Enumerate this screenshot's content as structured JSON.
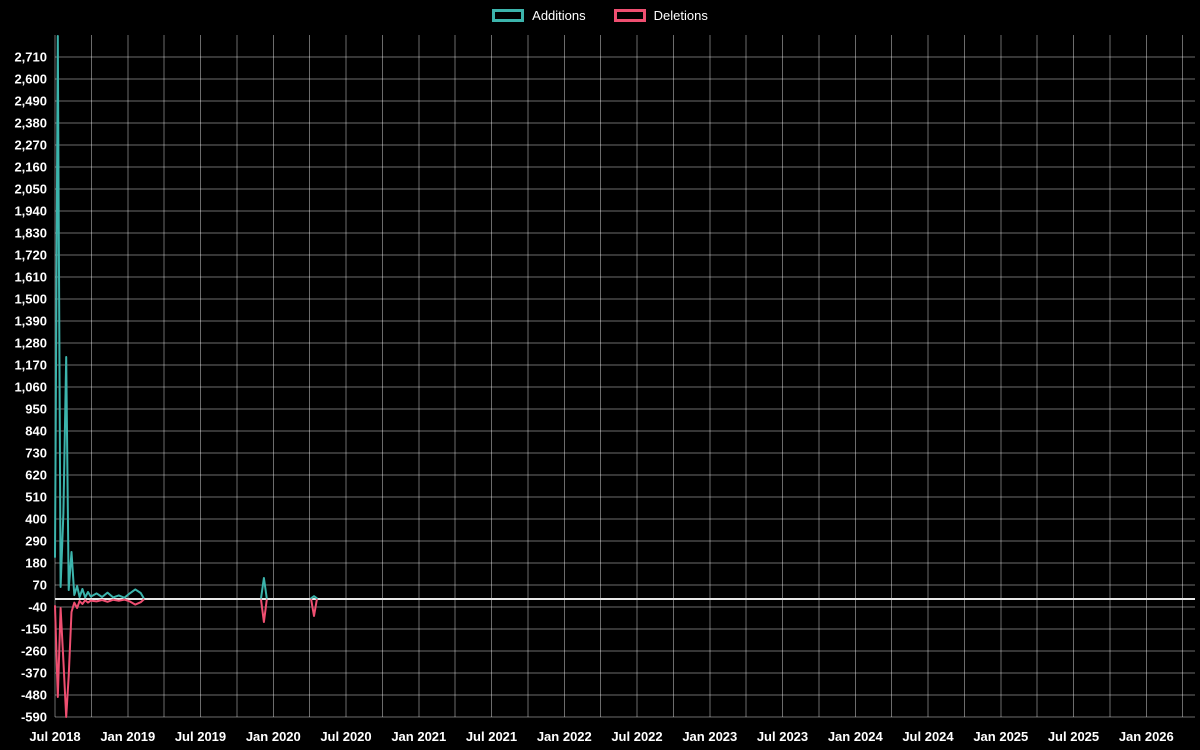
{
  "chart_data": {
    "type": "line",
    "title": "",
    "xlabel": "",
    "ylabel": "",
    "grid": true,
    "legend_position": "top-center",
    "background_color": "#000000",
    "ylim": [
      -590,
      2820
    ],
    "y_ticks": [
      {
        "v": 2710,
        "label": "2,710"
      },
      {
        "v": 2600,
        "label": "2,600"
      },
      {
        "v": 2490,
        "label": "2,490"
      },
      {
        "v": 2380,
        "label": "2,380"
      },
      {
        "v": 2270,
        "label": "2,270"
      },
      {
        "v": 2160,
        "label": "2,160"
      },
      {
        "v": 2050,
        "label": "2,050"
      },
      {
        "v": 1940,
        "label": "1,940"
      },
      {
        "v": 1830,
        "label": "1,830"
      },
      {
        "v": 1720,
        "label": "1,720"
      },
      {
        "v": 1610,
        "label": "1,610"
      },
      {
        "v": 1500,
        "label": "1,500"
      },
      {
        "v": 1390,
        "label": "1,390"
      },
      {
        "v": 1280,
        "label": "1,280"
      },
      {
        "v": 1170,
        "label": "1,170"
      },
      {
        "v": 1060,
        "label": "1,060"
      },
      {
        "v": 950,
        "label": "950"
      },
      {
        "v": 840,
        "label": "840"
      },
      {
        "v": 730,
        "label": "730"
      },
      {
        "v": 620,
        "label": "620"
      },
      {
        "v": 510,
        "label": "510"
      },
      {
        "v": 400,
        "label": "400"
      },
      {
        "v": 290,
        "label": "290"
      },
      {
        "v": 180,
        "label": "180"
      },
      {
        "v": 70,
        "label": "70"
      },
      {
        "v": -40,
        "label": "-40"
      },
      {
        "v": -150,
        "label": "-150"
      },
      {
        "v": -260,
        "label": "-260"
      },
      {
        "v": -370,
        "label": "-370"
      },
      {
        "v": -480,
        "label": "-480"
      },
      {
        "v": -590,
        "label": "-590"
      }
    ],
    "x_ticks": [
      {
        "t": 2018.5,
        "label": "Jul 2018"
      },
      {
        "t": 2019.0,
        "label": "Jan 2019"
      },
      {
        "t": 2019.5,
        "label": "Jul 2019"
      },
      {
        "t": 2020.0,
        "label": "Jan 2020"
      },
      {
        "t": 2020.5,
        "label": "Jul 2020"
      },
      {
        "t": 2021.0,
        "label": "Jan 2021"
      },
      {
        "t": 2021.5,
        "label": "Jul 2021"
      },
      {
        "t": 2022.0,
        "label": "Jan 2022"
      },
      {
        "t": 2022.5,
        "label": "Jul 2022"
      },
      {
        "t": 2023.0,
        "label": "Jan 2023"
      },
      {
        "t": 2023.5,
        "label": "Jul 2023"
      },
      {
        "t": 2024.0,
        "label": "Jan 2024"
      },
      {
        "t": 2024.5,
        "label": "Jul 2024"
      },
      {
        "t": 2025.0,
        "label": "Jan 2025"
      },
      {
        "t": 2025.5,
        "label": "Jul 2025"
      },
      {
        "t": 2026.0,
        "label": "Jan 2026"
      }
    ],
    "series": [
      {
        "name": "Additions",
        "color": "#3cb4ac",
        "segments": [
          [
            [
              "2018-07-01",
              210
            ],
            [
              "2018-07-08",
              2815
            ],
            [
              "2018-07-15",
              60
            ],
            [
              "2018-07-22",
              430
            ],
            [
              "2018-07-29",
              1210
            ],
            [
              "2018-08-05",
              45
            ],
            [
              "2018-08-12",
              235
            ],
            [
              "2018-08-19",
              20
            ],
            [
              "2018-08-26",
              65
            ],
            [
              "2018-09-02",
              10
            ],
            [
              "2018-09-09",
              50
            ],
            [
              "2018-09-16",
              8
            ],
            [
              "2018-09-23",
              35
            ],
            [
              "2018-09-30",
              12
            ],
            [
              "2018-10-14",
              28
            ],
            [
              "2018-10-28",
              10
            ],
            [
              "2018-11-11",
              32
            ],
            [
              "2018-11-25",
              8
            ],
            [
              "2018-12-09",
              18
            ],
            [
              "2018-12-23",
              6
            ],
            [
              "2019-01-06",
              28
            ],
            [
              "2019-01-20",
              48
            ],
            [
              "2019-02-03",
              30
            ],
            [
              "2019-02-10",
              6
            ]
          ],
          [
            [
              "2019-12-01",
              6
            ],
            [
              "2019-12-08",
              105
            ],
            [
              "2019-12-15",
              6
            ]
          ],
          [
            [
              "2020-04-05",
              4
            ],
            [
              "2020-04-12",
              14
            ],
            [
              "2020-04-19",
              4
            ]
          ]
        ]
      },
      {
        "name": "Deletions",
        "color": "#ef4f71",
        "segments": [
          [
            [
              "2018-07-01",
              -35
            ],
            [
              "2018-07-08",
              -490
            ],
            [
              "2018-07-15",
              -45
            ],
            [
              "2018-07-22",
              -310
            ],
            [
              "2018-07-29",
              -590
            ],
            [
              "2018-08-05",
              -385
            ],
            [
              "2018-08-12",
              -65
            ],
            [
              "2018-08-19",
              -18
            ],
            [
              "2018-08-26",
              -45
            ],
            [
              "2018-09-02",
              -10
            ],
            [
              "2018-09-09",
              -25
            ],
            [
              "2018-09-16",
              -6
            ],
            [
              "2018-09-23",
              -18
            ],
            [
              "2018-09-30",
              -8
            ],
            [
              "2018-10-14",
              -12
            ],
            [
              "2018-10-28",
              -5
            ],
            [
              "2018-11-11",
              -14
            ],
            [
              "2018-11-25",
              -4
            ],
            [
              "2018-12-09",
              -9
            ],
            [
              "2018-12-23",
              -3
            ],
            [
              "2019-01-06",
              -12
            ],
            [
              "2019-01-20",
              -28
            ],
            [
              "2019-02-03",
              -16
            ],
            [
              "2019-02-10",
              -4
            ]
          ],
          [
            [
              "2019-12-01",
              -6
            ],
            [
              "2019-12-08",
              -115
            ],
            [
              "2019-12-15",
              -6
            ]
          ],
          [
            [
              "2020-04-05",
              -4
            ],
            [
              "2020-04-12",
              -85
            ],
            [
              "2020-04-19",
              -4
            ]
          ]
        ]
      }
    ]
  }
}
